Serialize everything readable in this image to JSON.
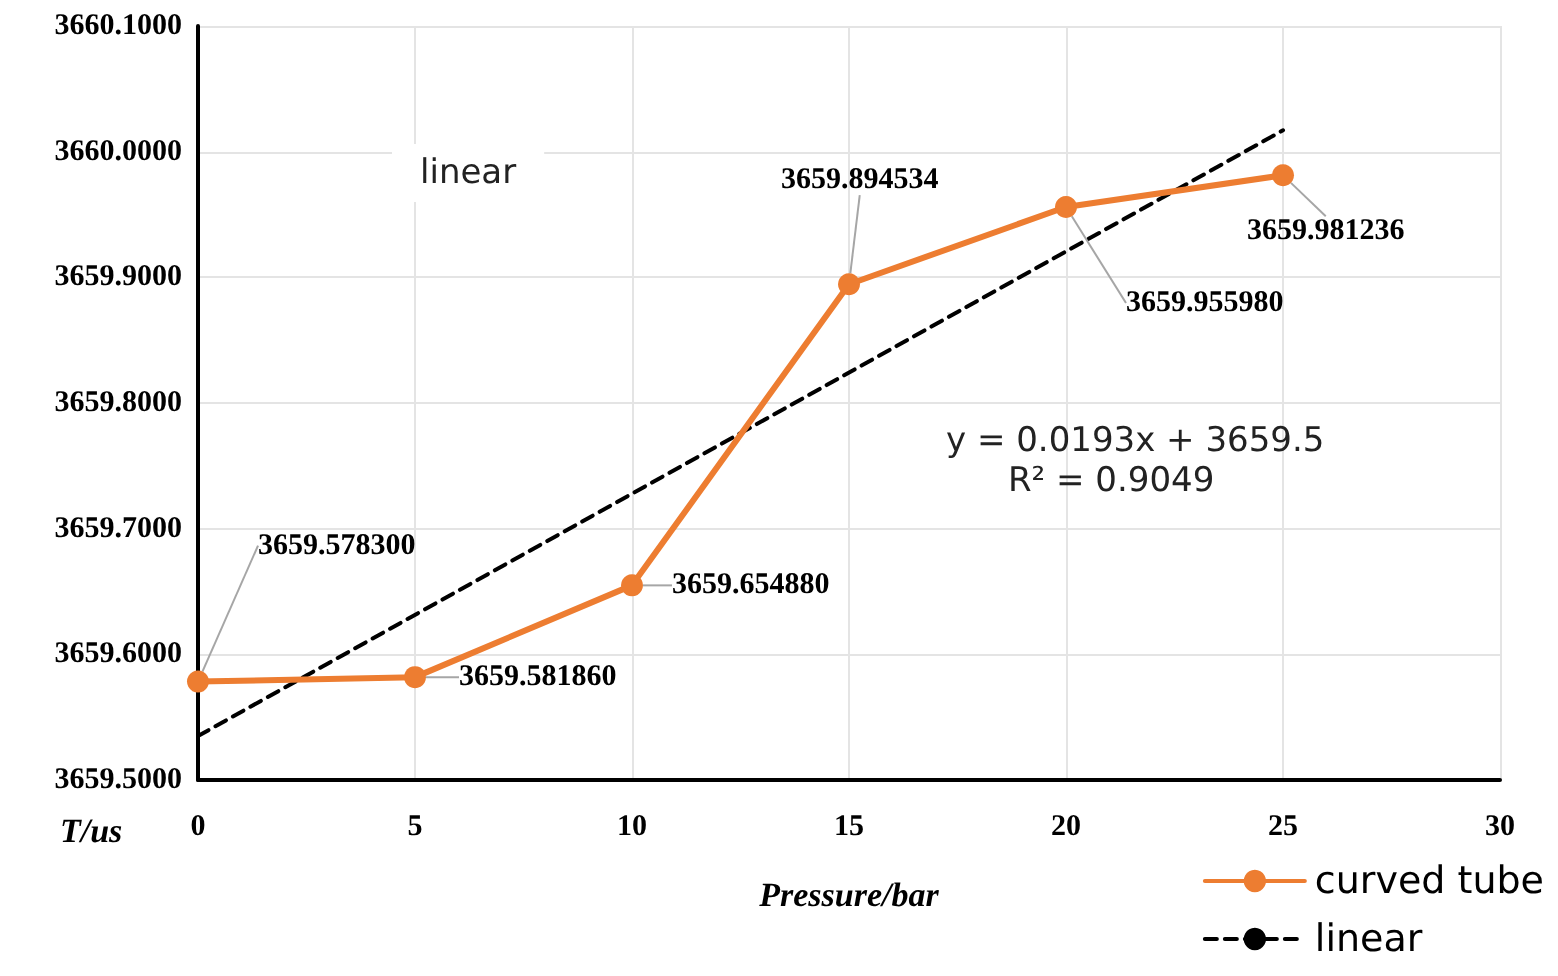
{
  "chart_data": {
    "type": "line",
    "xlabel": "Pressure/bar",
    "ylabel": "T/us",
    "xlim": [
      0,
      30
    ],
    "xticks": [
      0,
      5,
      10,
      15,
      20,
      25,
      30
    ],
    "ylim": [
      3659.5,
      3660.1
    ],
    "yticks": [
      {
        "value": 3659.5,
        "label": "3659.5000"
      },
      {
        "value": 3659.6,
        "label": "3659.6000"
      },
      {
        "value": 3659.7,
        "label": "3659.7000"
      },
      {
        "value": 3659.8,
        "label": "3659.8000"
      },
      {
        "value": 3659.9,
        "label": "3659.9000"
      },
      {
        "value": 3660.0,
        "label": "3660.0000"
      },
      {
        "value": 3660.1,
        "label": "3660.1000"
      }
    ],
    "grid": true,
    "legend": "bottom right",
    "annotations": [
      "linear",
      "y = 0.0193x + 3659.5",
      "R² = 0.9049"
    ],
    "series": [
      {
        "name": "curved tube",
        "color": "#ed7d31",
        "marker": "circle",
        "line_style": "solid",
        "x": [
          0,
          5,
          10,
          15,
          20,
          25
        ],
        "values": [
          3659.5783,
          3659.58186,
          3659.65488,
          3659.894534,
          3659.95598,
          3659.981236
        ],
        "value_labels": [
          "3659.578300",
          "3659.581860",
          "3659.654880",
          "3659.894534",
          "3659.955980",
          "3659.981236"
        ]
      },
      {
        "name": "linear",
        "color": "#000000",
        "marker": "none",
        "line_style": "dashed",
        "x": [
          0,
          25
        ],
        "values": [
          3659.535,
          3660.017
        ]
      }
    ]
  }
}
